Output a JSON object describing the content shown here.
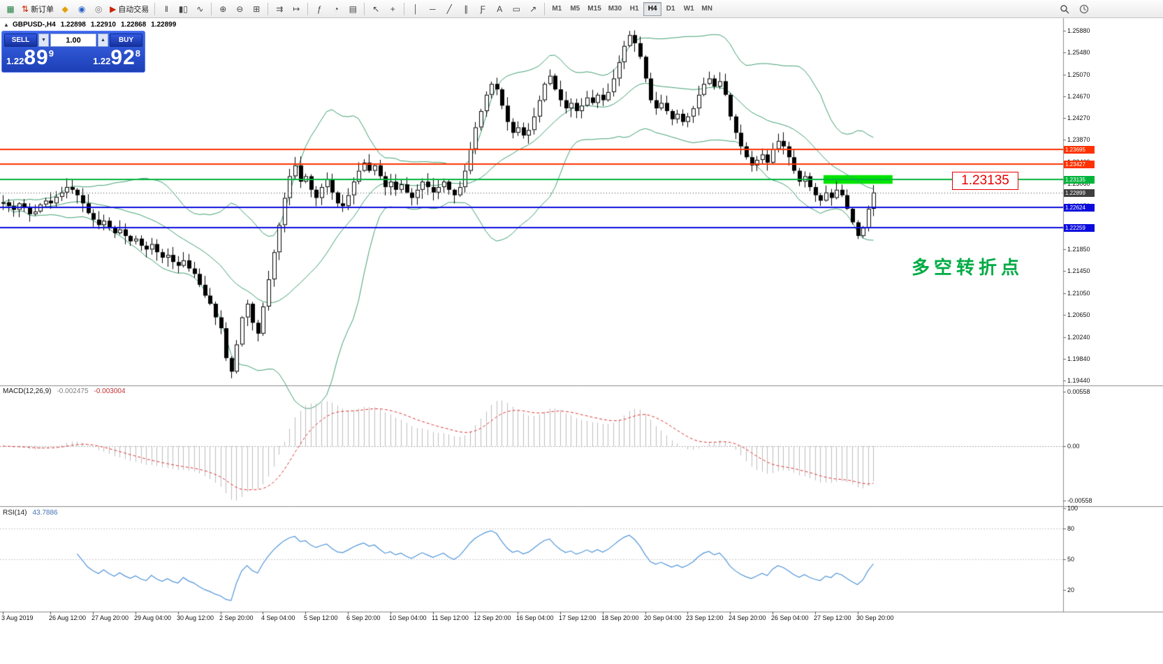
{
  "toolbar": {
    "items": [
      {
        "name": "chart-window-icon",
        "glyph": "▦",
        "color": "#1b7e3c"
      },
      {
        "name": "new-order-button",
        "glyph": "⇅",
        "color": "#cc2200",
        "label": "新订单"
      },
      {
        "name": "metaeditor-icon",
        "glyph": "◆",
        "color": "#e3a008"
      },
      {
        "name": "market-watch-icon",
        "glyph": "◉",
        "color": "#2a62c5"
      },
      {
        "name": "strategy-tester-icon",
        "glyph": "◎",
        "color": "#777777"
      },
      {
        "name": "autotrading-button",
        "glyph": "▶",
        "color": "#cc2200",
        "label": "自动交易"
      },
      {
        "sep": true
      },
      {
        "name": "bar-chart-icon",
        "glyph": "‖"
      },
      {
        "name": "candlestick-chart-icon",
        "glyph": "▮▯"
      },
      {
        "name": "line-chart-icon",
        "glyph": "∿"
      },
      {
        "sep": true
      },
      {
        "name": "zoom-in-icon",
        "glyph": "⊕"
      },
      {
        "name": "zoom-out-icon",
        "glyph": "⊖"
      },
      {
        "name": "tile-windows-icon",
        "glyph": "⊞"
      },
      {
        "sep": true
      },
      {
        "name": "auto-scroll-icon",
        "glyph": "⇉"
      },
      {
        "name": "chart-shift-icon",
        "glyph": "↦"
      },
      {
        "sep": true
      },
      {
        "name": "indicators-icon",
        "glyph": "ƒ"
      },
      {
        "name": "periods-icon",
        "glyph": "◔"
      },
      {
        "name": "templates-icon",
        "glyph": "▤"
      },
      {
        "sep": true
      },
      {
        "name": "cursor-icon",
        "glyph": "↖"
      },
      {
        "name": "crosshair-icon",
        "glyph": "+"
      },
      {
        "sep": true
      },
      {
        "name": "vertical-line-icon",
        "glyph": "│"
      },
      {
        "name": "horizontal-line-icon",
        "glyph": "─"
      },
      {
        "name": "trendline-icon",
        "glyph": "╱"
      },
      {
        "name": "equidistant-channel-icon",
        "glyph": "∥"
      },
      {
        "name": "fibonacci-icon",
        "glyph": "Ƒ"
      },
      {
        "name": "text-icon",
        "glyph": "A"
      },
      {
        "name": "text-label-icon",
        "glyph": "▭"
      },
      {
        "name": "arrows-icon",
        "glyph": "↗"
      },
      {
        "sep": true
      }
    ],
    "timeframes": [
      "M1",
      "M5",
      "M15",
      "M30",
      "H1",
      "H4",
      "D1",
      "W1",
      "MN"
    ],
    "active_timeframe": "H4"
  },
  "chart_header": {
    "collapse_glyph": "▲",
    "symbol": "GBPUSD-,H4",
    "open": "1.22898",
    "high": "1.22910",
    "low": "1.22868",
    "close": "1.22899"
  },
  "trade": {
    "sell_label": "SELL",
    "buy_label": "BUY",
    "lot": "1.00",
    "lot_decrease_glyph": "▼",
    "lot_increase_glyph": "▲",
    "sell_price": {
      "base": "1.22",
      "pips": "89",
      "point": "9"
    },
    "buy_price": {
      "base": "1.22",
      "pips": "92",
      "point": "8"
    }
  },
  "annotations": {
    "price_callout": "1.23135",
    "turning_point": "多空转折点"
  },
  "indicators": {
    "macd": {
      "title": "MACD(12,26,9)",
      "value": "-0.002475",
      "signal_value": "-0.003004"
    },
    "rsi": {
      "title": "RSI(14)",
      "value": "43.7886"
    }
  },
  "chart_data": {
    "type": "candlestick",
    "symbol": "GBPUSD-",
    "timeframe": "H4",
    "candle_colors": {
      "bull": "#ffffff",
      "bear": "#000000",
      "outline": "#000000"
    },
    "y_axis": {
      "ticks": [
        "1.25880",
        "1.25480",
        "1.25070",
        "1.24670",
        "1.24270",
        "1.23870",
        "1.23460",
        "1.23060",
        "1.22650",
        "1.22250",
        "1.21850",
        "1.21450",
        "1.21050",
        "1.20650",
        "1.20240",
        "1.19840",
        "1.19440"
      ]
    },
    "x_labels": [
      {
        "i": 0,
        "t": "3 Aug 2019"
      },
      {
        "i": 9,
        "t": "26 Aug 12:00"
      },
      {
        "i": 17,
        "t": "27 Aug 20:00"
      },
      {
        "i": 25,
        "t": "29 Aug 04:00"
      },
      {
        "i": 33,
        "t": "30 Aug 12:00"
      },
      {
        "i": 41,
        "t": "2 Sep 20:00"
      },
      {
        "i": 49,
        "t": "4 Sep 04:00"
      },
      {
        "i": 57,
        "t": "5 Sep 12:00"
      },
      {
        "i": 65,
        "t": "6 Sep 20:00"
      },
      {
        "i": 73,
        "t": "10 Sep 04:00"
      },
      {
        "i": 81,
        "t": "11 Sep 12:00"
      },
      {
        "i": 89,
        "t": "12 Sep 20:00"
      },
      {
        "i": 97,
        "t": "16 Sep 04:00"
      },
      {
        "i": 105,
        "t": "17 Sep 12:00"
      },
      {
        "i": 113,
        "t": "18 Sep 20:00"
      },
      {
        "i": 121,
        "t": "20 Sep 04:00"
      },
      {
        "i": 129,
        "t": "23 Sep 12:00"
      },
      {
        "i": 137,
        "t": "24 Sep 20:00"
      },
      {
        "i": 145,
        "t": "26 Sep 04:00"
      },
      {
        "i": 153,
        "t": "27 Sep 12:00"
      },
      {
        "i": 161,
        "t": "30 Sep 20:00"
      }
    ],
    "closes": [
      1.2272,
      1.2265,
      1.2258,
      1.227,
      1.2262,
      1.225,
      1.2255,
      1.2268,
      1.2275,
      1.227,
      1.2282,
      1.229,
      1.23,
      1.2295,
      1.2285,
      1.227,
      1.2252,
      1.224,
      1.223,
      1.2238,
      1.2225,
      1.2215,
      1.2222,
      1.221,
      1.22,
      1.2205,
      1.2192,
      1.2185,
      1.2195,
      1.218,
      1.217,
      1.2175,
      1.2162,
      1.2155,
      1.2165,
      1.215,
      1.214,
      1.212,
      1.21,
      1.2085,
      1.206,
      1.204,
      1.1985,
      1.196,
      1.201,
      1.206,
      1.2085,
      1.205,
      1.203,
      1.208,
      1.213,
      1.218,
      1.223,
      1.228,
      1.232,
      1.234,
      1.231,
      1.232,
      1.2295,
      1.228,
      1.23,
      1.2315,
      1.229,
      1.227,
      1.2265,
      1.2285,
      1.231,
      1.233,
      1.2345,
      1.233,
      1.234,
      1.232,
      1.23,
      1.231,
      1.2295,
      1.2305,
      1.229,
      1.228,
      1.2295,
      1.231,
      1.23,
      1.229,
      1.23,
      1.231,
      1.2295,
      1.2285,
      1.23,
      1.233,
      1.237,
      1.241,
      1.244,
      1.247,
      1.249,
      1.248,
      1.245,
      1.242,
      1.24,
      1.241,
      1.2395,
      1.2405,
      1.243,
      1.246,
      1.249,
      1.2505,
      1.248,
      1.246,
      1.2445,
      1.2455,
      1.244,
      1.245,
      1.2465,
      1.2455,
      1.247,
      1.246,
      1.2475,
      1.25,
      1.253,
      1.256,
      1.258,
      1.2565,
      1.254,
      1.25,
      1.246,
      1.2445,
      1.2455,
      1.244,
      1.2425,
      1.2435,
      1.242,
      1.243,
      1.2445,
      1.247,
      1.249,
      1.25,
      1.2485,
      1.2495,
      1.247,
      1.243,
      1.24,
      1.2375,
      1.2355,
      1.234,
      1.235,
      1.236,
      1.2345,
      1.237,
      1.2385,
      1.2375,
      1.2355,
      1.233,
      1.231,
      1.232,
      1.23,
      1.2285,
      1.2275,
      1.229,
      1.228,
      1.2295,
      1.2285,
      1.226,
      1.2235,
      1.221,
      1.2225,
      1.226,
      1.22899
    ],
    "bollinger": {
      "period": 20,
      "deviation": 2,
      "color": "#3fa171"
    },
    "hlines": [
      {
        "price": 1.23695,
        "color": "#ff3200",
        "width": 2
      },
      {
        "price": 1.23427,
        "color": "#ff3200",
        "width": 2
      },
      {
        "price": 1.23135,
        "color": "#00b43c",
        "width": 2
      },
      {
        "price": 1.22624,
        "color": "#0b0bde",
        "width": 2
      },
      {
        "price": 1.22259,
        "color": "#0b0bde",
        "width": 2
      }
    ],
    "bid_line": {
      "price": 1.22899,
      "color": "#3f3f3f"
    },
    "zone": {
      "from_index": 155,
      "to_index": 168,
      "top": 1.2322,
      "bottom": 1.2306,
      "color": "#00e400"
    },
    "macd": {
      "fast": 12,
      "slow": 26,
      "signal": 9,
      "axis": [
        "0.00558",
        "0.00",
        "-0.00558"
      ],
      "hist_color": "#bdbdbd",
      "signal_color": "#e03232"
    },
    "rsi": {
      "period": 14,
      "axis": [
        "100",
        "80",
        "50",
        "20"
      ],
      "levels": [
        80,
        50
      ],
      "color": "#4f94d9"
    }
  }
}
